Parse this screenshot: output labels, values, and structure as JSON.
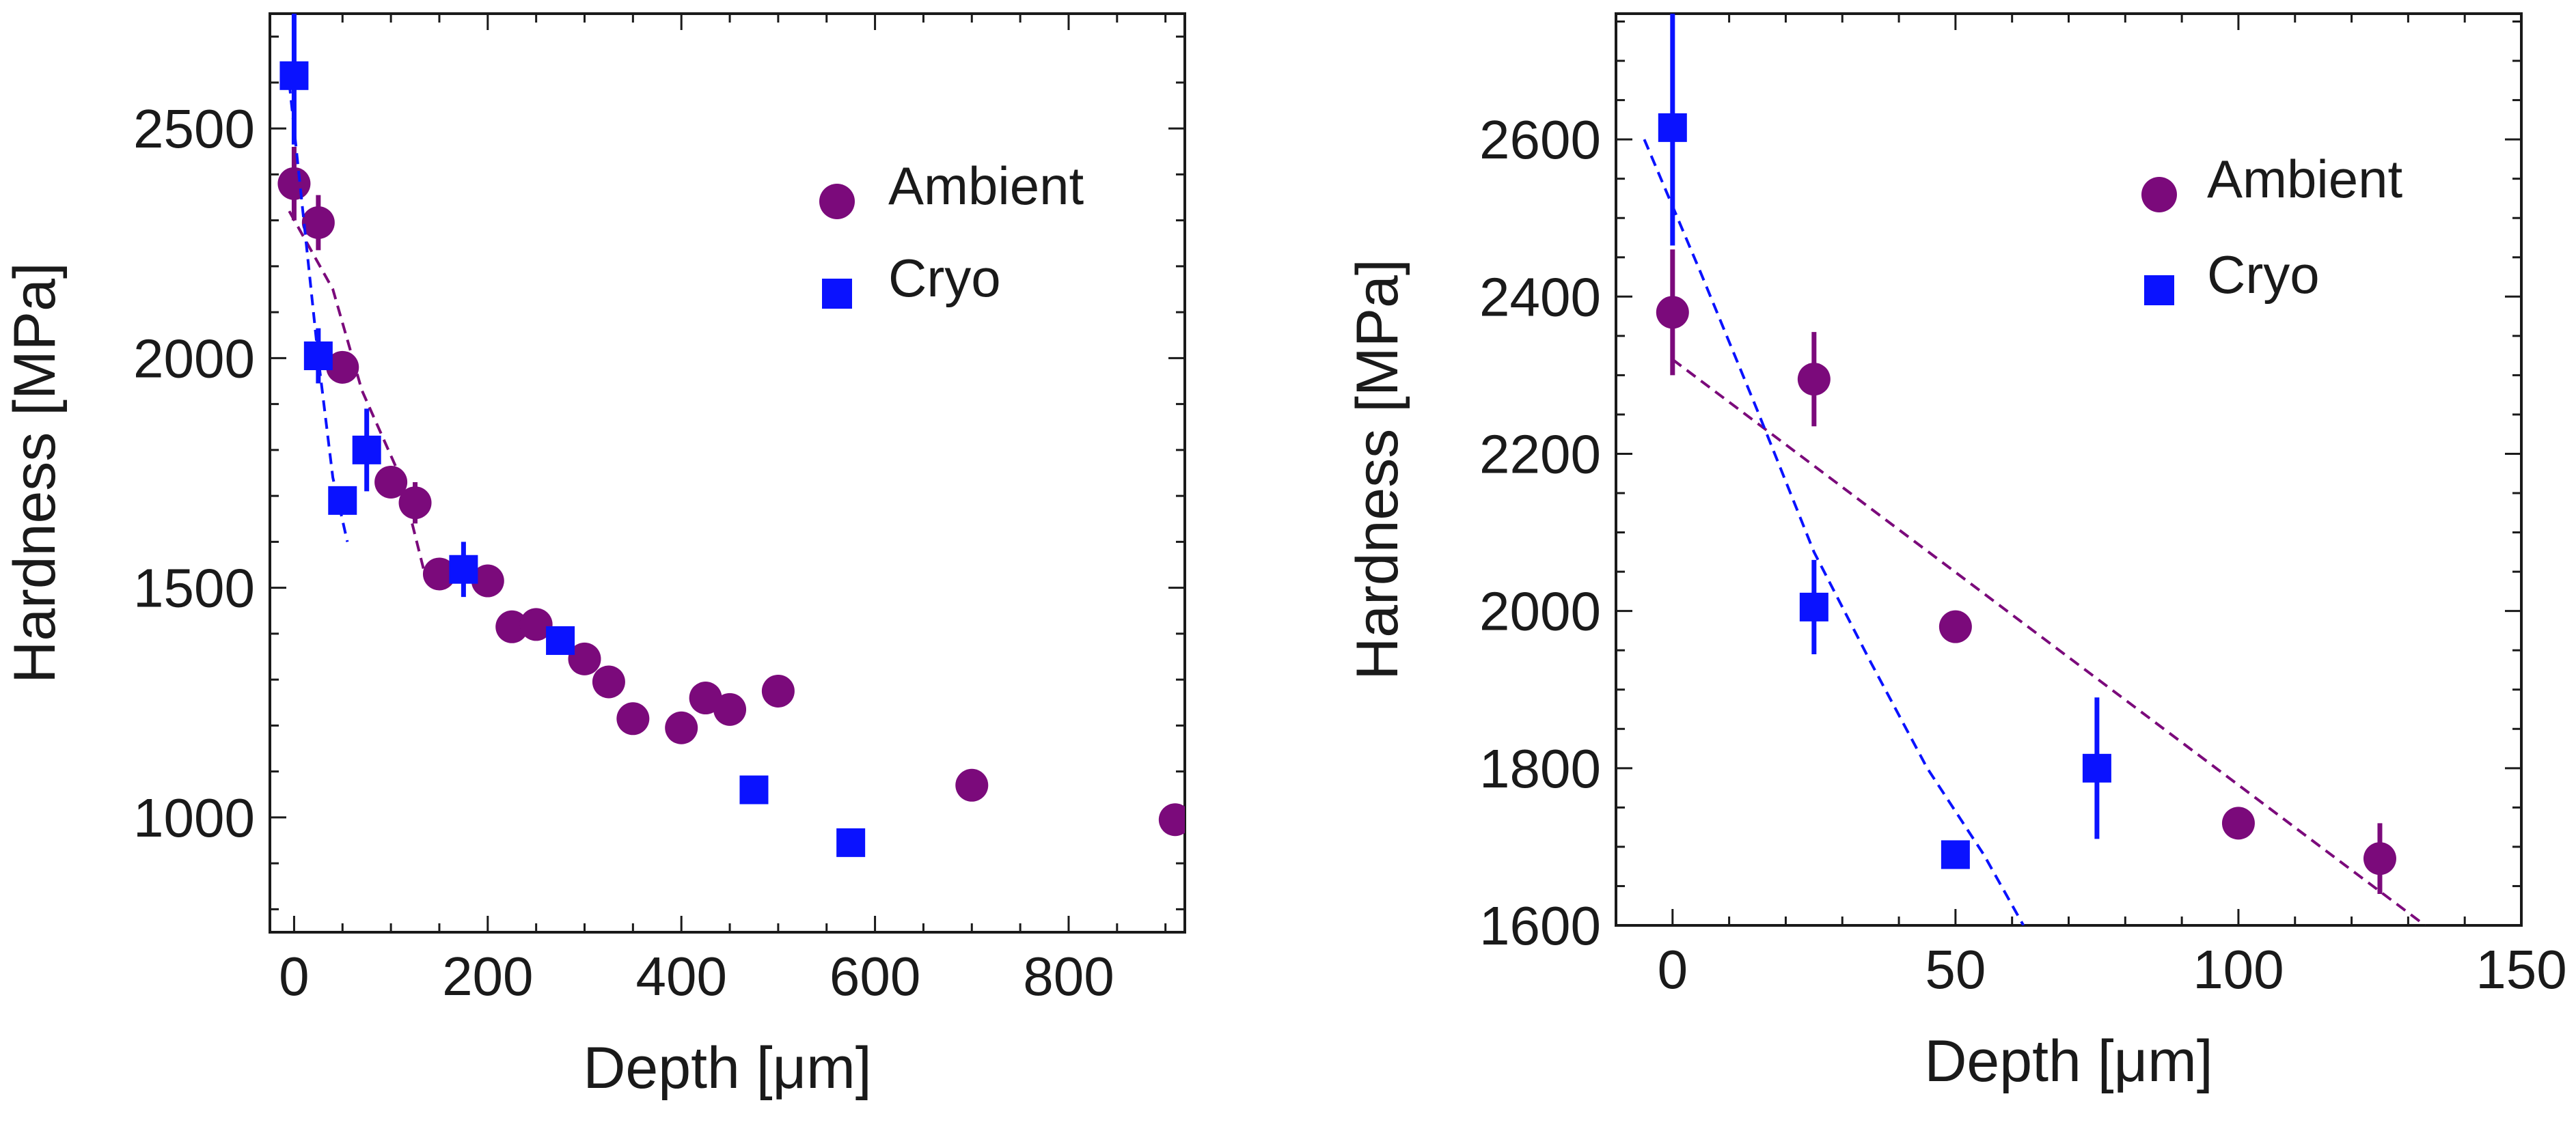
{
  "colors": {
    "ambient": "#7b0a7b",
    "cryo": "#0a12ff",
    "axis": "#1a1a1a"
  },
  "chart_data": [
    {
      "type": "scatter",
      "id": "left",
      "xlabel": "Depth [μm]",
      "ylabel": "Hardness [MPa]",
      "xlim": [
        -25,
        920
      ],
      "ylim": [
        750,
        2750
      ],
      "xticks": [
        0,
        200,
        400,
        600,
        800
      ],
      "yticks": [
        1000,
        1500,
        2000,
        2500
      ],
      "xminor": 50,
      "yminor": 100,
      "legend": [
        {
          "label": "Ambient",
          "series": "ambient",
          "position": "top-right"
        },
        {
          "label": "Cryo",
          "series": "cryo",
          "position": "top-right"
        }
      ],
      "series": [
        {
          "name": "Ambient",
          "key": "ambient",
          "marker": "circle",
          "points": [
            {
              "x": 0,
              "y": 2380,
              "err": 80
            },
            {
              "x": 25,
              "y": 2295,
              "err": 60
            },
            {
              "x": 50,
              "y": 1980,
              "err": 0
            },
            {
              "x": 100,
              "y": 1730,
              "err": 0
            },
            {
              "x": 125,
              "y": 1685,
              "err": 45
            },
            {
              "x": 150,
              "y": 1530,
              "err": 0
            },
            {
              "x": 200,
              "y": 1515,
              "err": 0
            },
            {
              "x": 225,
              "y": 1415,
              "err": 0
            },
            {
              "x": 250,
              "y": 1420,
              "err": 0
            },
            {
              "x": 300,
              "y": 1345,
              "err": 0
            },
            {
              "x": 325,
              "y": 1295,
              "err": 0
            },
            {
              "x": 350,
              "y": 1215,
              "err": 0
            },
            {
              "x": 400,
              "y": 1195,
              "err": 0
            },
            {
              "x": 425,
              "y": 1260,
              "err": 0
            },
            {
              "x": 450,
              "y": 1235,
              "err": 0
            },
            {
              "x": 500,
              "y": 1275,
              "err": 0
            },
            {
              "x": 700,
              "y": 1070,
              "err": 0
            },
            {
              "x": 910,
              "y": 995,
              "err": 0
            }
          ],
          "fit": [
            [
              -5,
              2320
            ],
            [
              40,
              2150
            ],
            [
              70,
              1930
            ],
            [
              110,
              1740
            ],
            [
              135,
              1530
            ],
            [
              170,
              1510
            ]
          ]
        },
        {
          "name": "Cryo",
          "key": "cryo",
          "marker": "square",
          "points": [
            {
              "x": 0,
              "y": 2615,
              "err": 150
            },
            {
              "x": 25,
              "y": 2005,
              "err": 60
            },
            {
              "x": 50,
              "y": 1690,
              "err": 0
            },
            {
              "x": 75,
              "y": 1800,
              "err": 90
            },
            {
              "x": 175,
              "y": 1540,
              "err": 60
            },
            {
              "x": 275,
              "y": 1385,
              "err": 0
            },
            {
              "x": 475,
              "y": 1060,
              "err": 0
            },
            {
              "x": 575,
              "y": 945,
              "err": 0
            }
          ],
          "fit": [
            [
              -5,
              2600
            ],
            [
              10,
              2300
            ],
            [
              25,
              2000
            ],
            [
              40,
              1740
            ],
            [
              55,
              1600
            ]
          ]
        }
      ]
    },
    {
      "type": "scatter",
      "id": "right",
      "xlabel": "Depth [μm]",
      "ylabel": "Hardness [MPa]",
      "xlim": [
        -10,
        150
      ],
      "ylim": [
        1600,
        2760
      ],
      "xticks": [
        0,
        50,
        100,
        150
      ],
      "yticks": [
        1600,
        1800,
        2000,
        2200,
        2400,
        2600
      ],
      "xminor": 10,
      "yminor": 50,
      "legend": [
        {
          "label": "Ambient",
          "series": "ambient",
          "position": "top-right"
        },
        {
          "label": "Cryo",
          "series": "cryo",
          "position": "top-right"
        }
      ],
      "series": [
        {
          "name": "Ambient",
          "key": "ambient",
          "marker": "circle",
          "points": [
            {
              "x": 0,
              "y": 2380,
              "err": 80
            },
            {
              "x": 25,
              "y": 2295,
              "err": 60
            },
            {
              "x": 50,
              "y": 1980,
              "err": 0
            },
            {
              "x": 100,
              "y": 1730,
              "err": 0
            },
            {
              "x": 125,
              "y": 1685,
              "err": 45
            }
          ],
          "fit": [
            [
              0,
              2320
            ],
            [
              133,
              1600
            ]
          ]
        },
        {
          "name": "Cryo",
          "key": "cryo",
          "marker": "square",
          "points": [
            {
              "x": 0,
              "y": 2615,
              "err": 150
            },
            {
              "x": 25,
              "y": 2005,
              "err": 60
            },
            {
              "x": 50,
              "y": 1690,
              "err": 0
            },
            {
              "x": 75,
              "y": 1800,
              "err": 90
            }
          ],
          "fit": [
            [
              -5,
              2600
            ],
            [
              5,
              2430
            ],
            [
              15,
              2255
            ],
            [
              25,
              2075
            ],
            [
              35,
              1935
            ],
            [
              45,
              1800
            ],
            [
              55,
              1690
            ],
            [
              62,
              1600
            ]
          ]
        }
      ]
    }
  ]
}
